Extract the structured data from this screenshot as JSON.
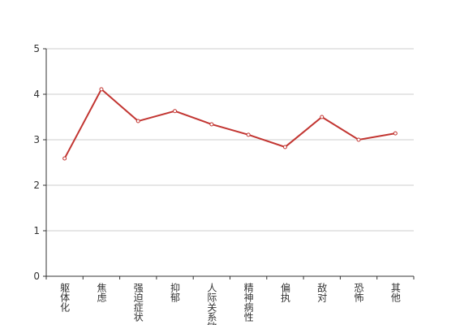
{
  "chart_data": {
    "type": "line",
    "categories": [
      "躯体化",
      "焦虑",
      "强迫症状",
      "抑郁",
      "人际关系敏感",
      "精神病性",
      "偏执",
      "敌对",
      "恐怖",
      "其他"
    ],
    "series": [
      {
        "color": "#c23531",
        "values": [
          2.59,
          4.11,
          3.41,
          3.63,
          3.34,
          3.11,
          2.84,
          3.5,
          3.0,
          3.14
        ]
      }
    ],
    "ylim": [
      0,
      5
    ],
    "yticks": [
      0,
      1,
      2,
      3,
      4,
      5
    ],
    "grid": true
  }
}
